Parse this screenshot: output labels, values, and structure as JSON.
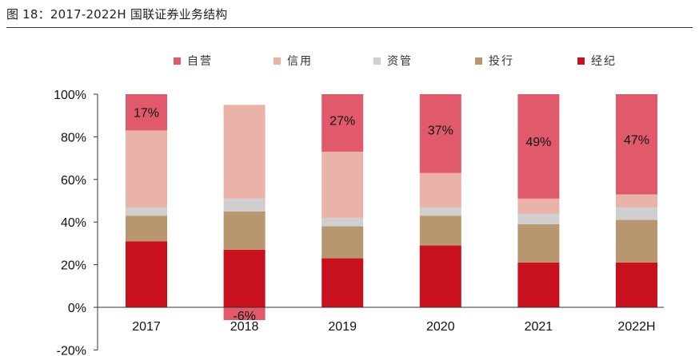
{
  "figure": {
    "title": "图 18：2017-2022H 国联证券业务结构"
  },
  "chart_data": {
    "type": "bar",
    "stacked": true,
    "title": "图 18：2017-2022H 国联证券业务结构",
    "categories": [
      "2017",
      "2018",
      "2019",
      "2020",
      "2021",
      "2022H"
    ],
    "ylim": [
      -20,
      100
    ],
    "yticks": [
      -20,
      0,
      20,
      40,
      60,
      80,
      100
    ],
    "ytick_labels": [
      "-20%",
      "0%",
      "20%",
      "40%",
      "60%",
      "80%",
      "100%"
    ],
    "xlabel": "",
    "ylabel": "",
    "legend_position": "top",
    "stack_order": [
      "经纪",
      "投行",
      "资管",
      "信用",
      "自营"
    ],
    "series": [
      {
        "name": "自营",
        "color": "#e05a6b",
        "values": [
          17,
          -6,
          27,
          37,
          49,
          47
        ]
      },
      {
        "name": "信用",
        "color": "#eab3a8",
        "values": [
          36,
          44,
          31,
          16,
          7,
          6
        ]
      },
      {
        "name": "资管",
        "color": "#cfcfcf",
        "values": [
          4,
          6,
          4,
          4,
          5,
          6
        ]
      },
      {
        "name": "投行",
        "color": "#b8976f",
        "values": [
          12,
          18,
          15,
          14,
          18,
          20
        ]
      },
      {
        "name": "经纪",
        "color": "#c8101e",
        "values": [
          31,
          27,
          23,
          29,
          21,
          21
        ]
      }
    ],
    "data_labels": [
      {
        "series": "自营",
        "category": "2017",
        "text": "17%"
      },
      {
        "series": "自营",
        "category": "2018",
        "text": "-6%"
      },
      {
        "series": "自营",
        "category": "2019",
        "text": "27%"
      },
      {
        "series": "自营",
        "category": "2020",
        "text": "37%"
      },
      {
        "series": "自营",
        "category": "2021",
        "text": "49%"
      },
      {
        "series": "自营",
        "category": "2022H",
        "text": "47%"
      }
    ],
    "colors": {
      "axis": "#333333",
      "text": "#111111"
    }
  }
}
